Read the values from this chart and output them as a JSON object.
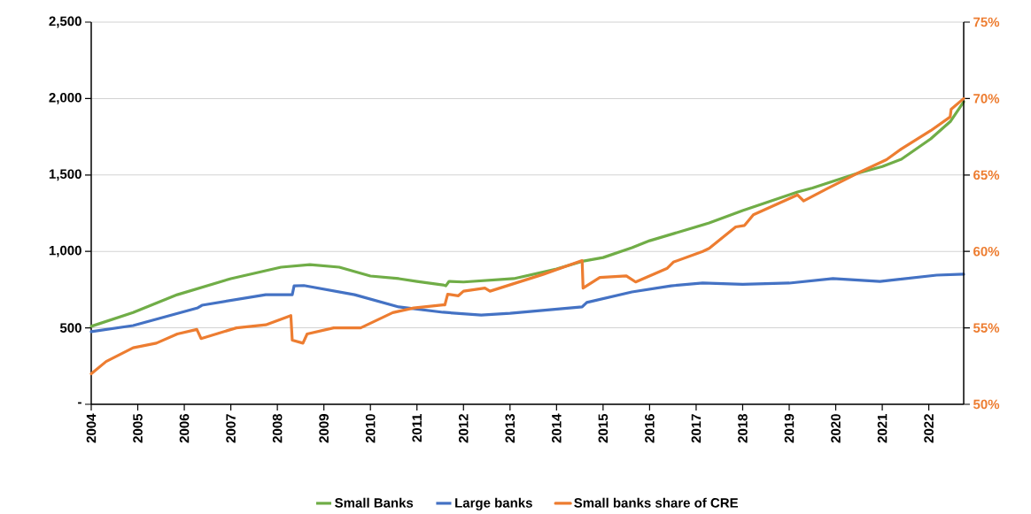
{
  "chart_data": {
    "type": "line",
    "xlim": [
      2004,
      2022.75
    ],
    "xticks": [
      2004,
      2005,
      2006,
      2007,
      2008,
      2009,
      2010,
      2011,
      2012,
      2013,
      2014,
      2015,
      2016,
      2017,
      2018,
      2019,
      2020,
      2021,
      2022
    ],
    "ylim": [
      0,
      2500
    ],
    "yticks": [
      {
        "value": 0,
        "label": "-"
      },
      {
        "value": 500,
        "label": "500"
      },
      {
        "value": 1000,
        "label": "1,000"
      },
      {
        "value": 1500,
        "label": "1,500"
      },
      {
        "value": 2000,
        "label": "2,000"
      },
      {
        "value": 2500,
        "label": "2,500"
      }
    ],
    "y2lim": [
      50,
      75
    ],
    "y2ticks": [
      {
        "value": 50,
        "label": "50%"
      },
      {
        "value": 55,
        "label": "55%"
      },
      {
        "value": 60,
        "label": "60%"
      },
      {
        "value": 65,
        "label": "65%"
      },
      {
        "value": 70,
        "label": "70%"
      },
      {
        "value": 75,
        "label": "75%"
      }
    ],
    "grid": "y",
    "legend": "bottom",
    "line_style": "solid",
    "series": [
      {
        "name": "Small Banks",
        "color": "#70ad47",
        "x": [
          2004,
          2004.9,
          2005.85,
          2007,
          2008.08,
          2008.7,
          2009.33,
          2010,
          2010.61,
          2011,
          2011.56,
          2011.62,
          2011.69,
          2012,
          2013.08,
          2014,
          2014.55,
          2015,
          2015.62,
          2016,
          2017.28,
          2018,
          2019.18,
          2019.5,
          2020.46,
          2021,
          2021.41,
          2022.04,
          2022.47,
          2022.75
        ],
        "values": [
          510,
          600,
          717,
          822,
          897,
          914,
          897,
          839,
          822,
          804,
          781,
          775,
          804,
          800,
          822,
          885,
          935,
          960,
          1024,
          1070,
          1186,
          1267,
          1389,
          1415,
          1510,
          1555,
          1603,
          1736,
          1852,
          1979
        ]
      },
      {
        "name": "Large banks",
        "color": "#4472c4",
        "x": [
          2004,
          2004.9,
          2006.29,
          2006.38,
          2007.75,
          2008.32,
          2008.36,
          2008.57,
          2009.66,
          2010.61,
          2011.56,
          2012.38,
          2013,
          2014.55,
          2014.65,
          2015.62,
          2016.46,
          2017.14,
          2018,
          2019,
          2019.94,
          2020.95,
          2022.17,
          2022.75
        ],
        "values": [
          475,
          515,
          631,
          648,
          717,
          717,
          775,
          777,
          717,
          637,
          602,
          584,
          595,
          637,
          666,
          735,
          775,
          793,
          785,
          793,
          822,
          804,
          845,
          851
        ]
      },
      {
        "name": "Small banks share of CRE",
        "color": "#ed7d31",
        "axis": "y2",
        "x": [
          2004,
          2004.32,
          2004.9,
          2005.4,
          2005.85,
          2006.27,
          2006.36,
          2007.12,
          2007.75,
          2008.29,
          2008.32,
          2008.55,
          2008.64,
          2009.21,
          2009.79,
          2010.48,
          2010.93,
          2011.56,
          2011.6,
          2011.66,
          2011.89,
          2012,
          2012.46,
          2012.57,
          2013.71,
          2014.55,
          2014.57,
          2014.93,
          2015.5,
          2015.7,
          2016.38,
          2016.51,
          2017.14,
          2017.28,
          2017.85,
          2018.04,
          2018.23,
          2019.18,
          2019.31,
          2019.81,
          2020.46,
          2021.09,
          2021.41,
          2022.04,
          2022.46,
          2022.48,
          2022.75
        ],
        "values": [
          52.0,
          52.8,
          53.7,
          54.0,
          54.6,
          54.9,
          54.3,
          55.0,
          55.2,
          55.8,
          54.2,
          54.0,
          54.6,
          55.0,
          55.0,
          56.0,
          56.3,
          56.5,
          56.5,
          57.2,
          57.1,
          57.4,
          57.6,
          57.4,
          58.5,
          59.4,
          57.6,
          58.3,
          58.4,
          58.0,
          58.9,
          59.3,
          60.0,
          60.2,
          61.6,
          61.7,
          62.4,
          63.7,
          63.3,
          64.1,
          65.1,
          66.0,
          66.7,
          67.9,
          68.8,
          69.3,
          70.0
        ]
      }
    ]
  }
}
